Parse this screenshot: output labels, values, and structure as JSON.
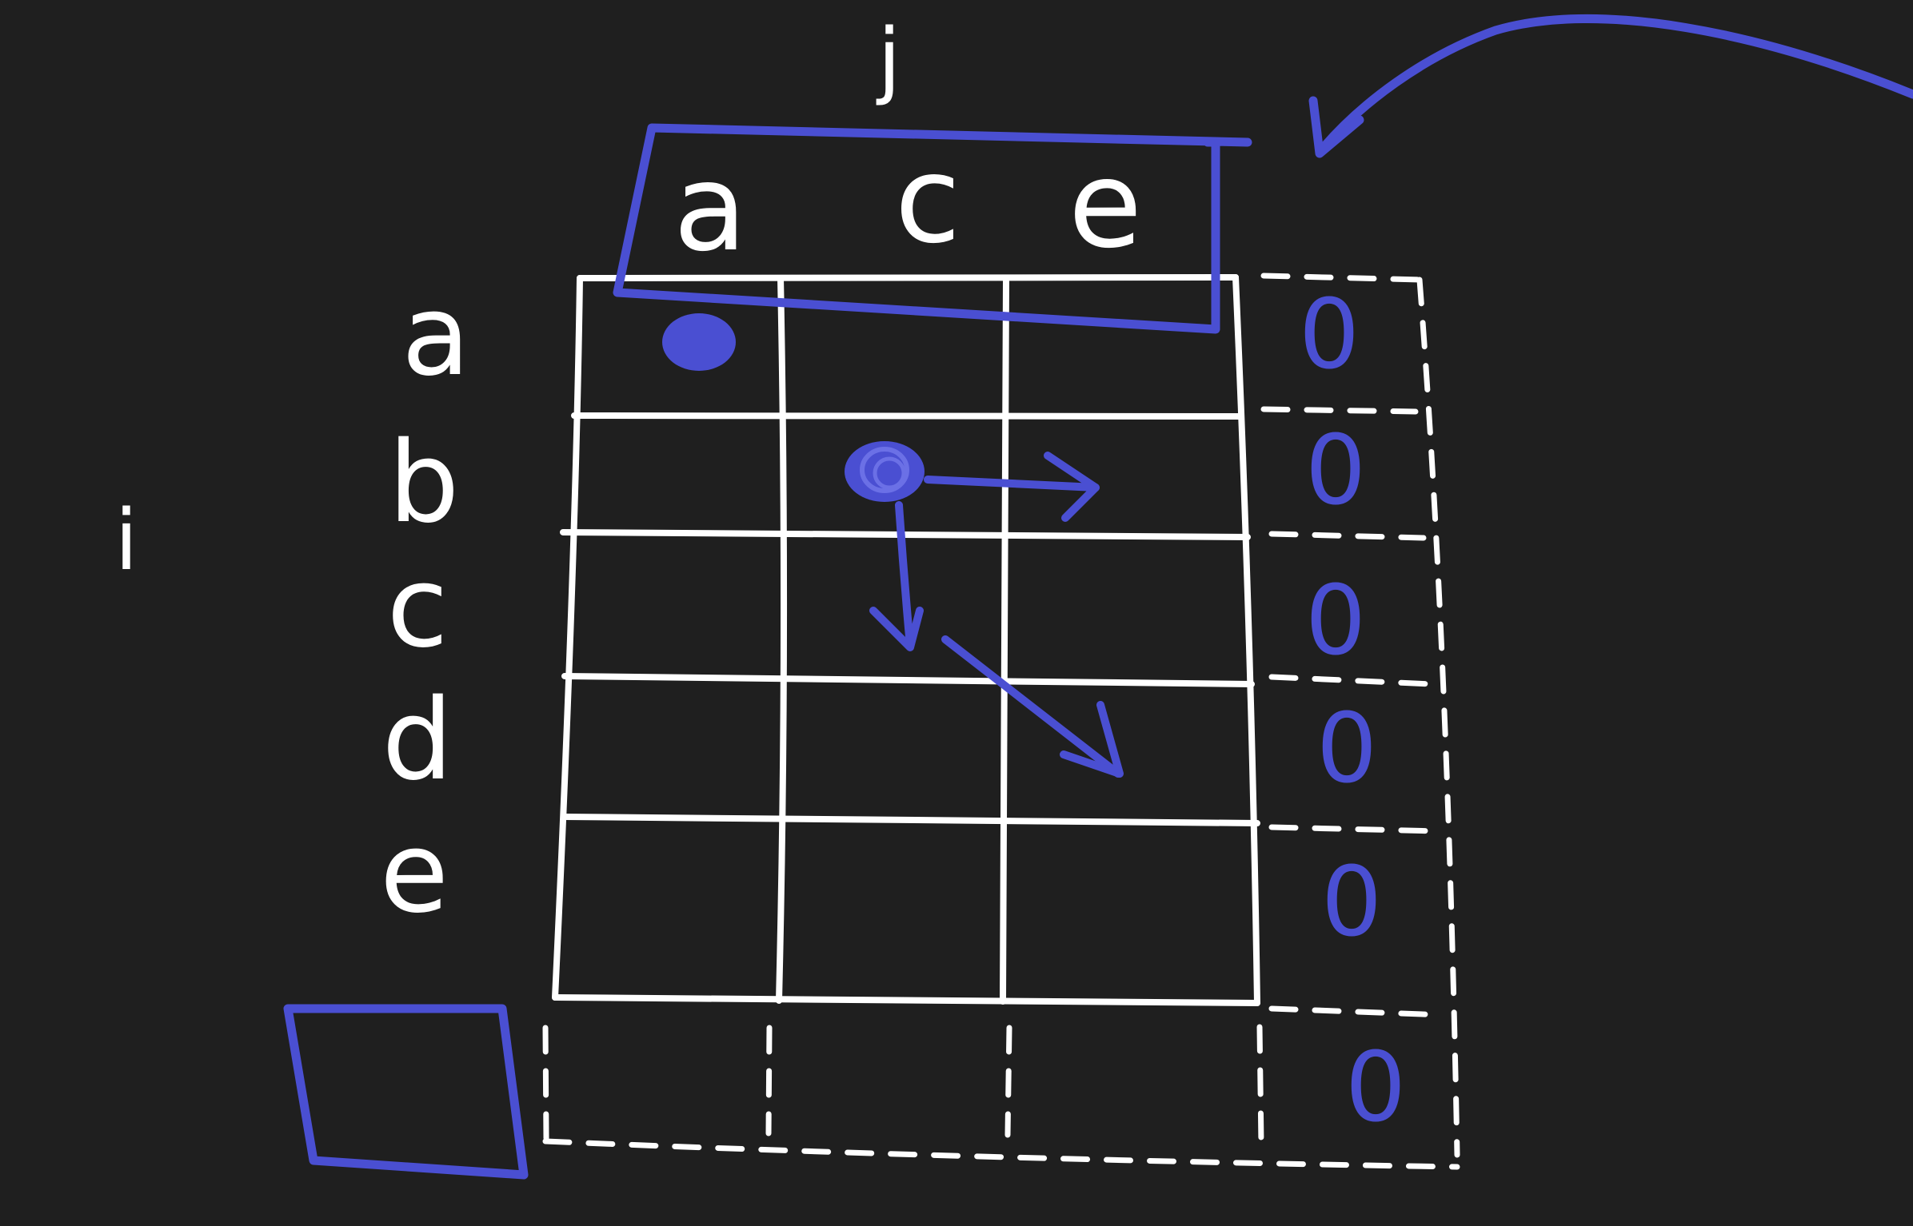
{
  "labels": {
    "col_axis": "j",
    "row_axis": "i"
  },
  "columns": [
    "a",
    "c",
    "e"
  ],
  "rows": [
    "a",
    "b",
    "c",
    "d",
    "e"
  ],
  "base_column_values": [
    "0",
    "0",
    "0",
    "0",
    "0",
    "0"
  ],
  "colors": {
    "background": "#1f1f1f",
    "ink_white": "#ffffff",
    "ink_blue": "#4a4fd2"
  }
}
